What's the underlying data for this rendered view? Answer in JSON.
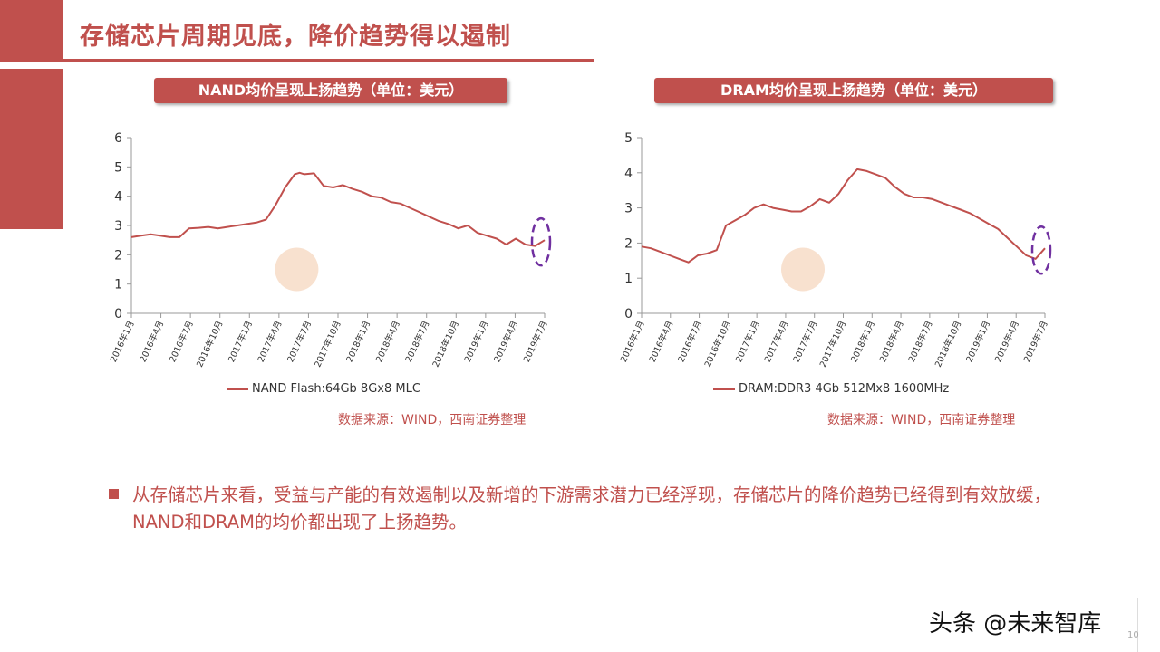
{
  "slide": {
    "title": "存储芯片周期见底，降价趋势得以遏制",
    "bullet": "从存储芯片来看，受益与产能的有效遏制以及新增的下游需求潜力已经浮现，存储芯片的降价趋势已经得到有效放缓，NAND和DRAM的均价都出现了上扬趋势。",
    "watermark": "头条 @未来智库",
    "page_number": "10"
  },
  "chart_data": [
    {
      "type": "line",
      "title": "NAND均价呈现上扬趋势（单位：美元）",
      "source": "数据来源：WIND，西南证券整理",
      "ylim": [
        0,
        6
      ],
      "yticks": [
        "0",
        "1",
        "2",
        "3",
        "4",
        "5",
        "6"
      ],
      "xticks": [
        "2016年1月",
        "2016年4月",
        "2016年7月",
        "2016年10月",
        "2017年1月",
        "2017年4月",
        "2017年7月",
        "2017年10月",
        "2018年1月",
        "2018年4月",
        "2018年7月",
        "2018年10月",
        "2019年1月",
        "2019年4月",
        "2019年7月"
      ],
      "x_range": [
        0,
        43
      ],
      "legend": "bottom",
      "color": "#c0504d",
      "series": [
        {
          "name": "NAND Flash:64Gb 8Gx8 MLC",
          "x": [
            0,
            1,
            2,
            3,
            4,
            5,
            6,
            7,
            8,
            9,
            10,
            11,
            12,
            13,
            14,
            15,
            16,
            17,
            17.5,
            18,
            19,
            20,
            21,
            22,
            23,
            24,
            25,
            26,
            27,
            28,
            29,
            30,
            31,
            32,
            33,
            34,
            35,
            36,
            37,
            38,
            39,
            40,
            41,
            42,
            43
          ],
          "y": [
            2.6,
            2.65,
            2.7,
            2.65,
            2.6,
            2.6,
            2.9,
            2.92,
            2.95,
            2.9,
            2.95,
            3.0,
            3.05,
            3.1,
            3.2,
            3.7,
            4.3,
            4.75,
            4.8,
            4.75,
            4.78,
            4.35,
            4.3,
            4.38,
            4.25,
            4.15,
            4.0,
            3.95,
            3.8,
            3.75,
            3.6,
            3.45,
            3.3,
            3.15,
            3.05,
            2.9,
            3.0,
            2.75,
            2.65,
            2.55,
            2.35,
            2.55,
            2.35,
            2.3,
            2.5
          ]
        }
      ]
    },
    {
      "type": "line",
      "title": "DRAM均价呈现上扬趋势（单位：美元）",
      "source": "数据来源：WIND，西南证券整理",
      "ylim": [
        0,
        5
      ],
      "yticks": [
        "0",
        "1",
        "2",
        "3",
        "4",
        "5"
      ],
      "xticks": [
        "2016年1月",
        "2016年4月",
        "2016年7月",
        "2016年10月",
        "2017年1月",
        "2017年4月",
        "2017年7月",
        "2017年10月",
        "2018年1月",
        "2018年4月",
        "2018年7月",
        "2018年10月",
        "2019年1月",
        "2019年4月",
        "2019年7月"
      ],
      "x_range": [
        0,
        43
      ],
      "legend": "bottom",
      "color": "#c0504d",
      "series": [
        {
          "name": "DRAM:DDR3 4Gb 512Mx8 1600MHz",
          "x": [
            0,
            1,
            2,
            3,
            4,
            5,
            5.5,
            6,
            7,
            8,
            9,
            10,
            11,
            12,
            13,
            14,
            15,
            16,
            17,
            18,
            19,
            20,
            21,
            22,
            23,
            24,
            25,
            26,
            27,
            28,
            29,
            30,
            31,
            32,
            33,
            34,
            35,
            36,
            37,
            38,
            39,
            40,
            41,
            42,
            43
          ],
          "y": [
            1.9,
            1.85,
            1.75,
            1.65,
            1.55,
            1.45,
            1.55,
            1.65,
            1.7,
            1.8,
            2.5,
            2.65,
            2.8,
            3.0,
            3.1,
            3.0,
            2.95,
            2.9,
            2.9,
            3.05,
            3.25,
            3.15,
            3.4,
            3.8,
            4.1,
            4.05,
            3.95,
            3.85,
            3.6,
            3.4,
            3.3,
            3.3,
            3.25,
            3.15,
            3.05,
            2.95,
            2.85,
            2.7,
            2.55,
            2.4,
            2.15,
            1.9,
            1.65,
            1.55,
            1.85
          ]
        }
      ]
    }
  ]
}
